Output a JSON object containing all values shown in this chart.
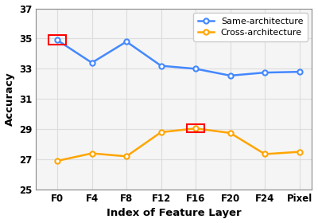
{
  "x_labels": [
    "F0",
    "F4",
    "F8",
    "F12",
    "F16",
    "F20",
    "F24",
    "Pixel"
  ],
  "same_arch": [
    34.9,
    33.4,
    34.8,
    33.2,
    33.0,
    32.55,
    32.75,
    32.8
  ],
  "cross_arch": [
    26.9,
    27.4,
    27.2,
    28.8,
    29.05,
    28.75,
    27.35,
    27.5
  ],
  "same_arch_color": "#4488FF",
  "cross_arch_color": "#FFA500",
  "same_arch_label": "Same-architecture",
  "cross_arch_label": "Cross-architecture",
  "xlabel": "Index of Feature Layer",
  "ylabel": "Accuracy",
  "ylim": [
    25,
    37
  ],
  "yticks": [
    25,
    27,
    29,
    31,
    33,
    35,
    37
  ],
  "highlight_same": 0,
  "highlight_cross": 4,
  "highlight_color": "red",
  "background_color": "#f5f5f5",
  "grid_color": "#dddddd",
  "marker": "o",
  "markersize": 4.5,
  "linewidth": 1.8
}
